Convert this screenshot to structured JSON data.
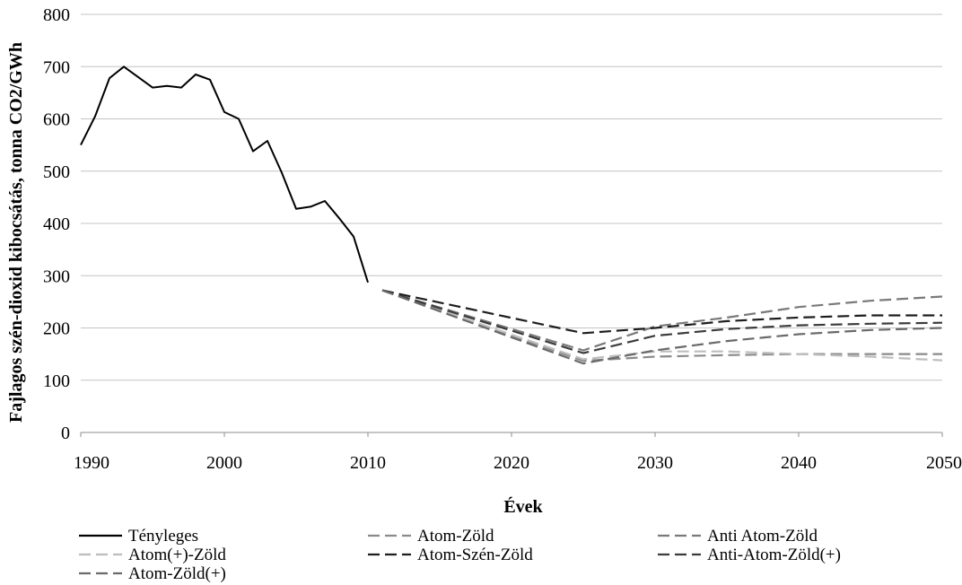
{
  "chart_data": {
    "type": "line",
    "title": "",
    "xlabel": "Évek",
    "ylabel": "Fajlagos szén-dioxid kibocsátás, tonna CO2/GWh",
    "xlim": [
      1990,
      2050
    ],
    "ylim": [
      0,
      800
    ],
    "x_ticks": [
      1990,
      2000,
      2010,
      2020,
      2030,
      2040,
      2050
    ],
    "y_ticks": [
      0,
      100,
      200,
      300,
      400,
      500,
      600,
      700,
      800
    ],
    "grid": "horizontal",
    "legend_position": "bottom",
    "series": [
      {
        "name": "Tényleges",
        "color": "#000000",
        "dash": "solid",
        "x": [
          1990,
          1991,
          1992,
          1993,
          1994,
          1995,
          1996,
          1997,
          1998,
          1999,
          2000,
          2001,
          2002,
          2003,
          2004,
          2005,
          2006,
          2007,
          2008,
          2009,
          2010
        ],
        "values": [
          550,
          605,
          678,
          700,
          680,
          660,
          663,
          660,
          685,
          675,
          613,
          600,
          538,
          558,
          497,
          428,
          432,
          443,
          410,
          375,
          287
        ]
      },
      {
        "name": "Atom-Zöld",
        "color": "#8a8a8a",
        "dash": "dashed",
        "x": [
          2011,
          2025,
          2030,
          2035,
          2040,
          2045,
          2050
        ],
        "values": [
          272,
          137,
          145,
          148,
          150,
          150,
          150
        ]
      },
      {
        "name": "Anti Atom-Zöld",
        "color": "#7a7a7a",
        "dash": "dashed",
        "x": [
          2011,
          2025,
          2030,
          2035,
          2040,
          2045,
          2050
        ],
        "values": [
          272,
          157,
          203,
          220,
          240,
          252,
          260
        ]
      },
      {
        "name": "Atom(+)-Zöld",
        "color": "#bdbdbd",
        "dash": "dashed",
        "x": [
          2011,
          2025,
          2030,
          2035,
          2040,
          2045,
          2050
        ],
        "values": [
          272,
          140,
          155,
          155,
          150,
          145,
          138
        ]
      },
      {
        "name": "Atom-Szén-Zöld",
        "color": "#1e1e1e",
        "dash": "dashed",
        "x": [
          2011,
          2025,
          2030,
          2035,
          2040,
          2045,
          2050
        ],
        "values": [
          272,
          190,
          200,
          213,
          220,
          224,
          224
        ]
      },
      {
        "name": "Anti-Atom-Zöld(+)",
        "color": "#3c3c3c",
        "dash": "dashed",
        "x": [
          2011,
          2025,
          2030,
          2035,
          2040,
          2045,
          2050
        ],
        "values": [
          272,
          152,
          185,
          198,
          205,
          208,
          210
        ]
      },
      {
        "name": "Atom-Zöld(+)",
        "color": "#6a6a6a",
        "dash": "dashed",
        "x": [
          2011,
          2025,
          2030,
          2035,
          2040,
          2045,
          2050
        ],
        "values": [
          272,
          132,
          157,
          175,
          188,
          196,
          200
        ]
      }
    ]
  }
}
